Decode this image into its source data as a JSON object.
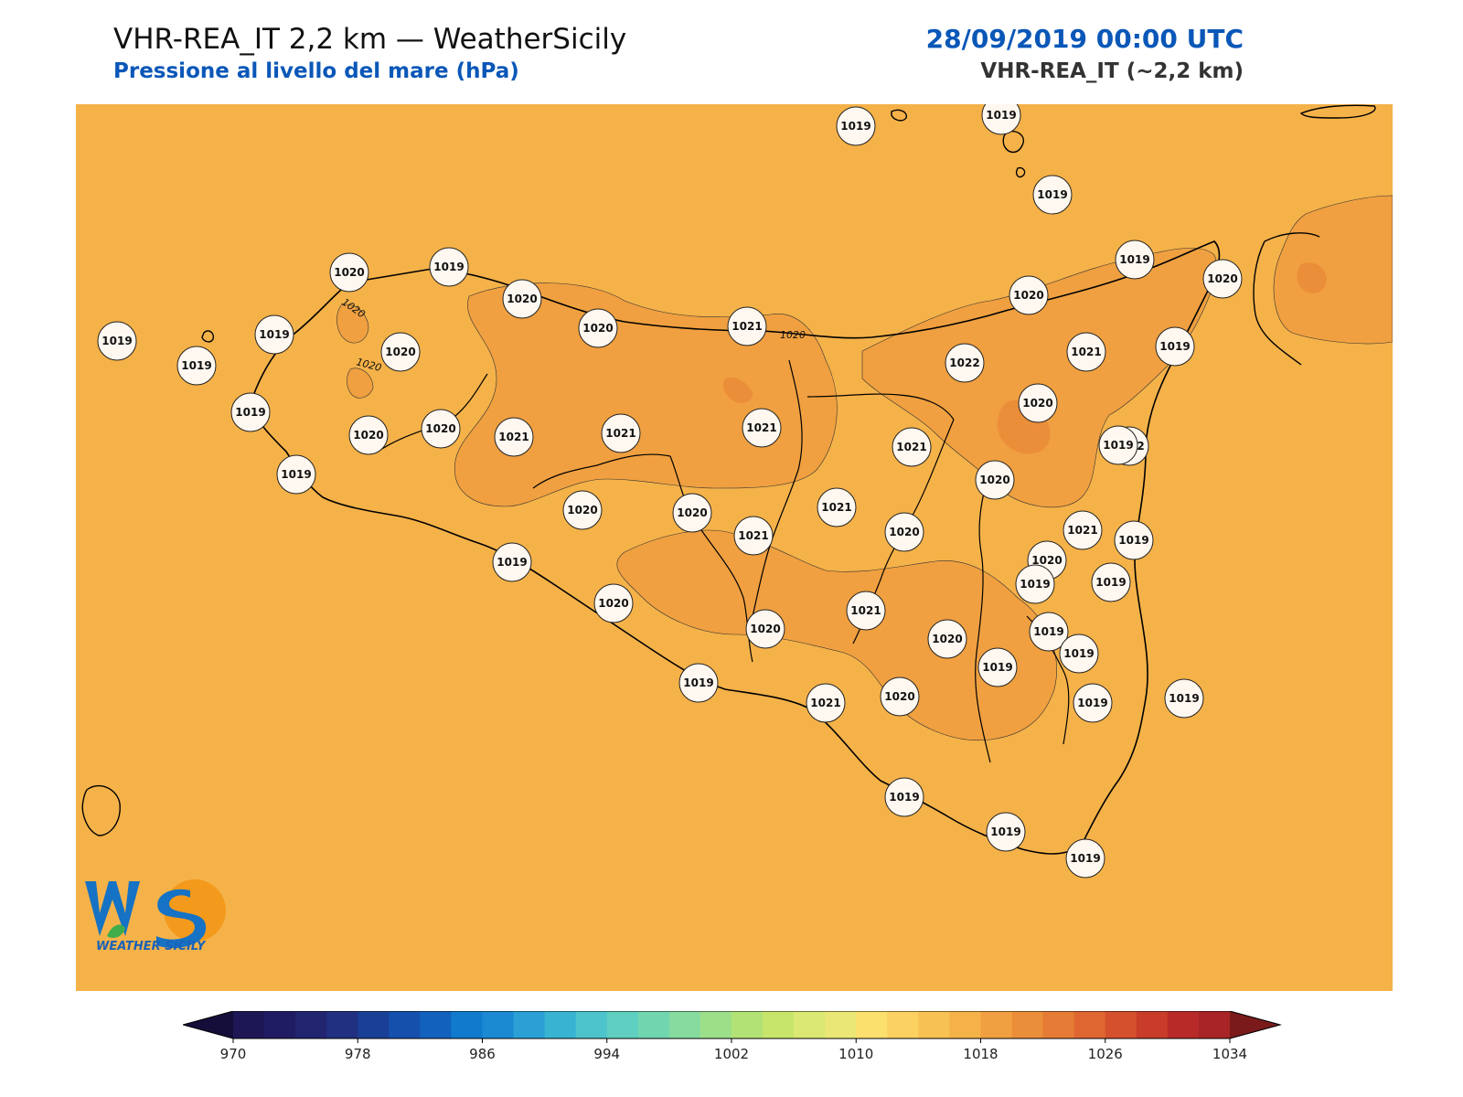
{
  "header": {
    "title": "VHR-REA_IT 2,2 km — WeatherSicily",
    "subtitle": "Pressione al livello del mare (hPa)",
    "datetime": "28/09/2019 00:00 UTC",
    "model": "VHR-REA_IT (~2,2 km)"
  },
  "map": {
    "fill_color": "#f5b249",
    "higher_pressure_color": "#f0a040",
    "highest_pressure_color": "#eb8e3a",
    "coastline_color": "#000000",
    "contour_labels": [
      "1020",
      "1020",
      "1020"
    ],
    "stations": [
      {
        "value": "1019"
      },
      {
        "value": "1019"
      },
      {
        "value": "1019"
      },
      {
        "value": "1019"
      },
      {
        "value": "1019"
      },
      {
        "value": "1019"
      },
      {
        "value": "1019"
      },
      {
        "value": "1019"
      },
      {
        "value": "1020"
      },
      {
        "value": "1019"
      },
      {
        "value": "1020"
      },
      {
        "value": "1020"
      },
      {
        "value": "1020"
      },
      {
        "value": "1020"
      },
      {
        "value": "1020"
      },
      {
        "value": "1021"
      },
      {
        "value": "1021"
      },
      {
        "value": "1021"
      },
      {
        "value": "1021"
      },
      {
        "value": "1019"
      },
      {
        "value": "1020"
      },
      {
        "value": "1019"
      },
      {
        "value": "1020"
      },
      {
        "value": "1022"
      },
      {
        "value": "1021"
      },
      {
        "value": "1020"
      },
      {
        "value": "1022"
      },
      {
        "value": "1019"
      },
      {
        "value": "1021"
      },
      {
        "value": "1020"
      },
      {
        "value": "1021"
      },
      {
        "value": "1020"
      },
      {
        "value": "1021"
      },
      {
        "value": "1020"
      },
      {
        "value": "1019"
      },
      {
        "value": "1019"
      },
      {
        "value": "1019"
      },
      {
        "value": "1019"
      },
      {
        "value": "1020"
      },
      {
        "value": "1020"
      },
      {
        "value": "1021"
      },
      {
        "value": "1019"
      },
      {
        "value": "1020"
      },
      {
        "value": "1021"
      },
      {
        "value": "1020"
      },
      {
        "value": "1019"
      },
      {
        "value": "1021"
      },
      {
        "value": "1020"
      },
      {
        "value": "1019"
      },
      {
        "value": "1019"
      },
      {
        "value": "1020"
      },
      {
        "value": "1019"
      },
      {
        "value": "1019"
      },
      {
        "value": "1019"
      },
      {
        "value": "1019"
      },
      {
        "value": "1019"
      }
    ]
  },
  "logo": {
    "initials": "WS",
    "name": "WEATHER SICILY"
  },
  "colorbar": {
    "min": 970,
    "max": 1034,
    "step": 2,
    "tick_labels": [
      "970",
      "978",
      "986",
      "994",
      "1002",
      "1010",
      "1018",
      "1026",
      "1034"
    ],
    "colors": [
      "#1e1756",
      "#201c64",
      "#222570",
      "#213080",
      "#1a3f96",
      "#1550ac",
      "#1262bd",
      "#117acd",
      "#1b8ad2",
      "#2aa0d4",
      "#38b4d2",
      "#4dc4cb",
      "#5ecfc0",
      "#71d6b0",
      "#86db9f",
      "#9ddf88",
      "#b2e276",
      "#c8e56b",
      "#dbe873",
      "#ebe774",
      "#fbe06e",
      "#fbd161",
      "#f8c153",
      "#f5b249",
      "#f0a040",
      "#eb8e3a",
      "#e67b35",
      "#df6630",
      "#d5502c",
      "#c83c29",
      "#b72a28",
      "#a82426"
    ],
    "under_color": "#150e3a",
    "over_color": "#7a1a1a"
  }
}
